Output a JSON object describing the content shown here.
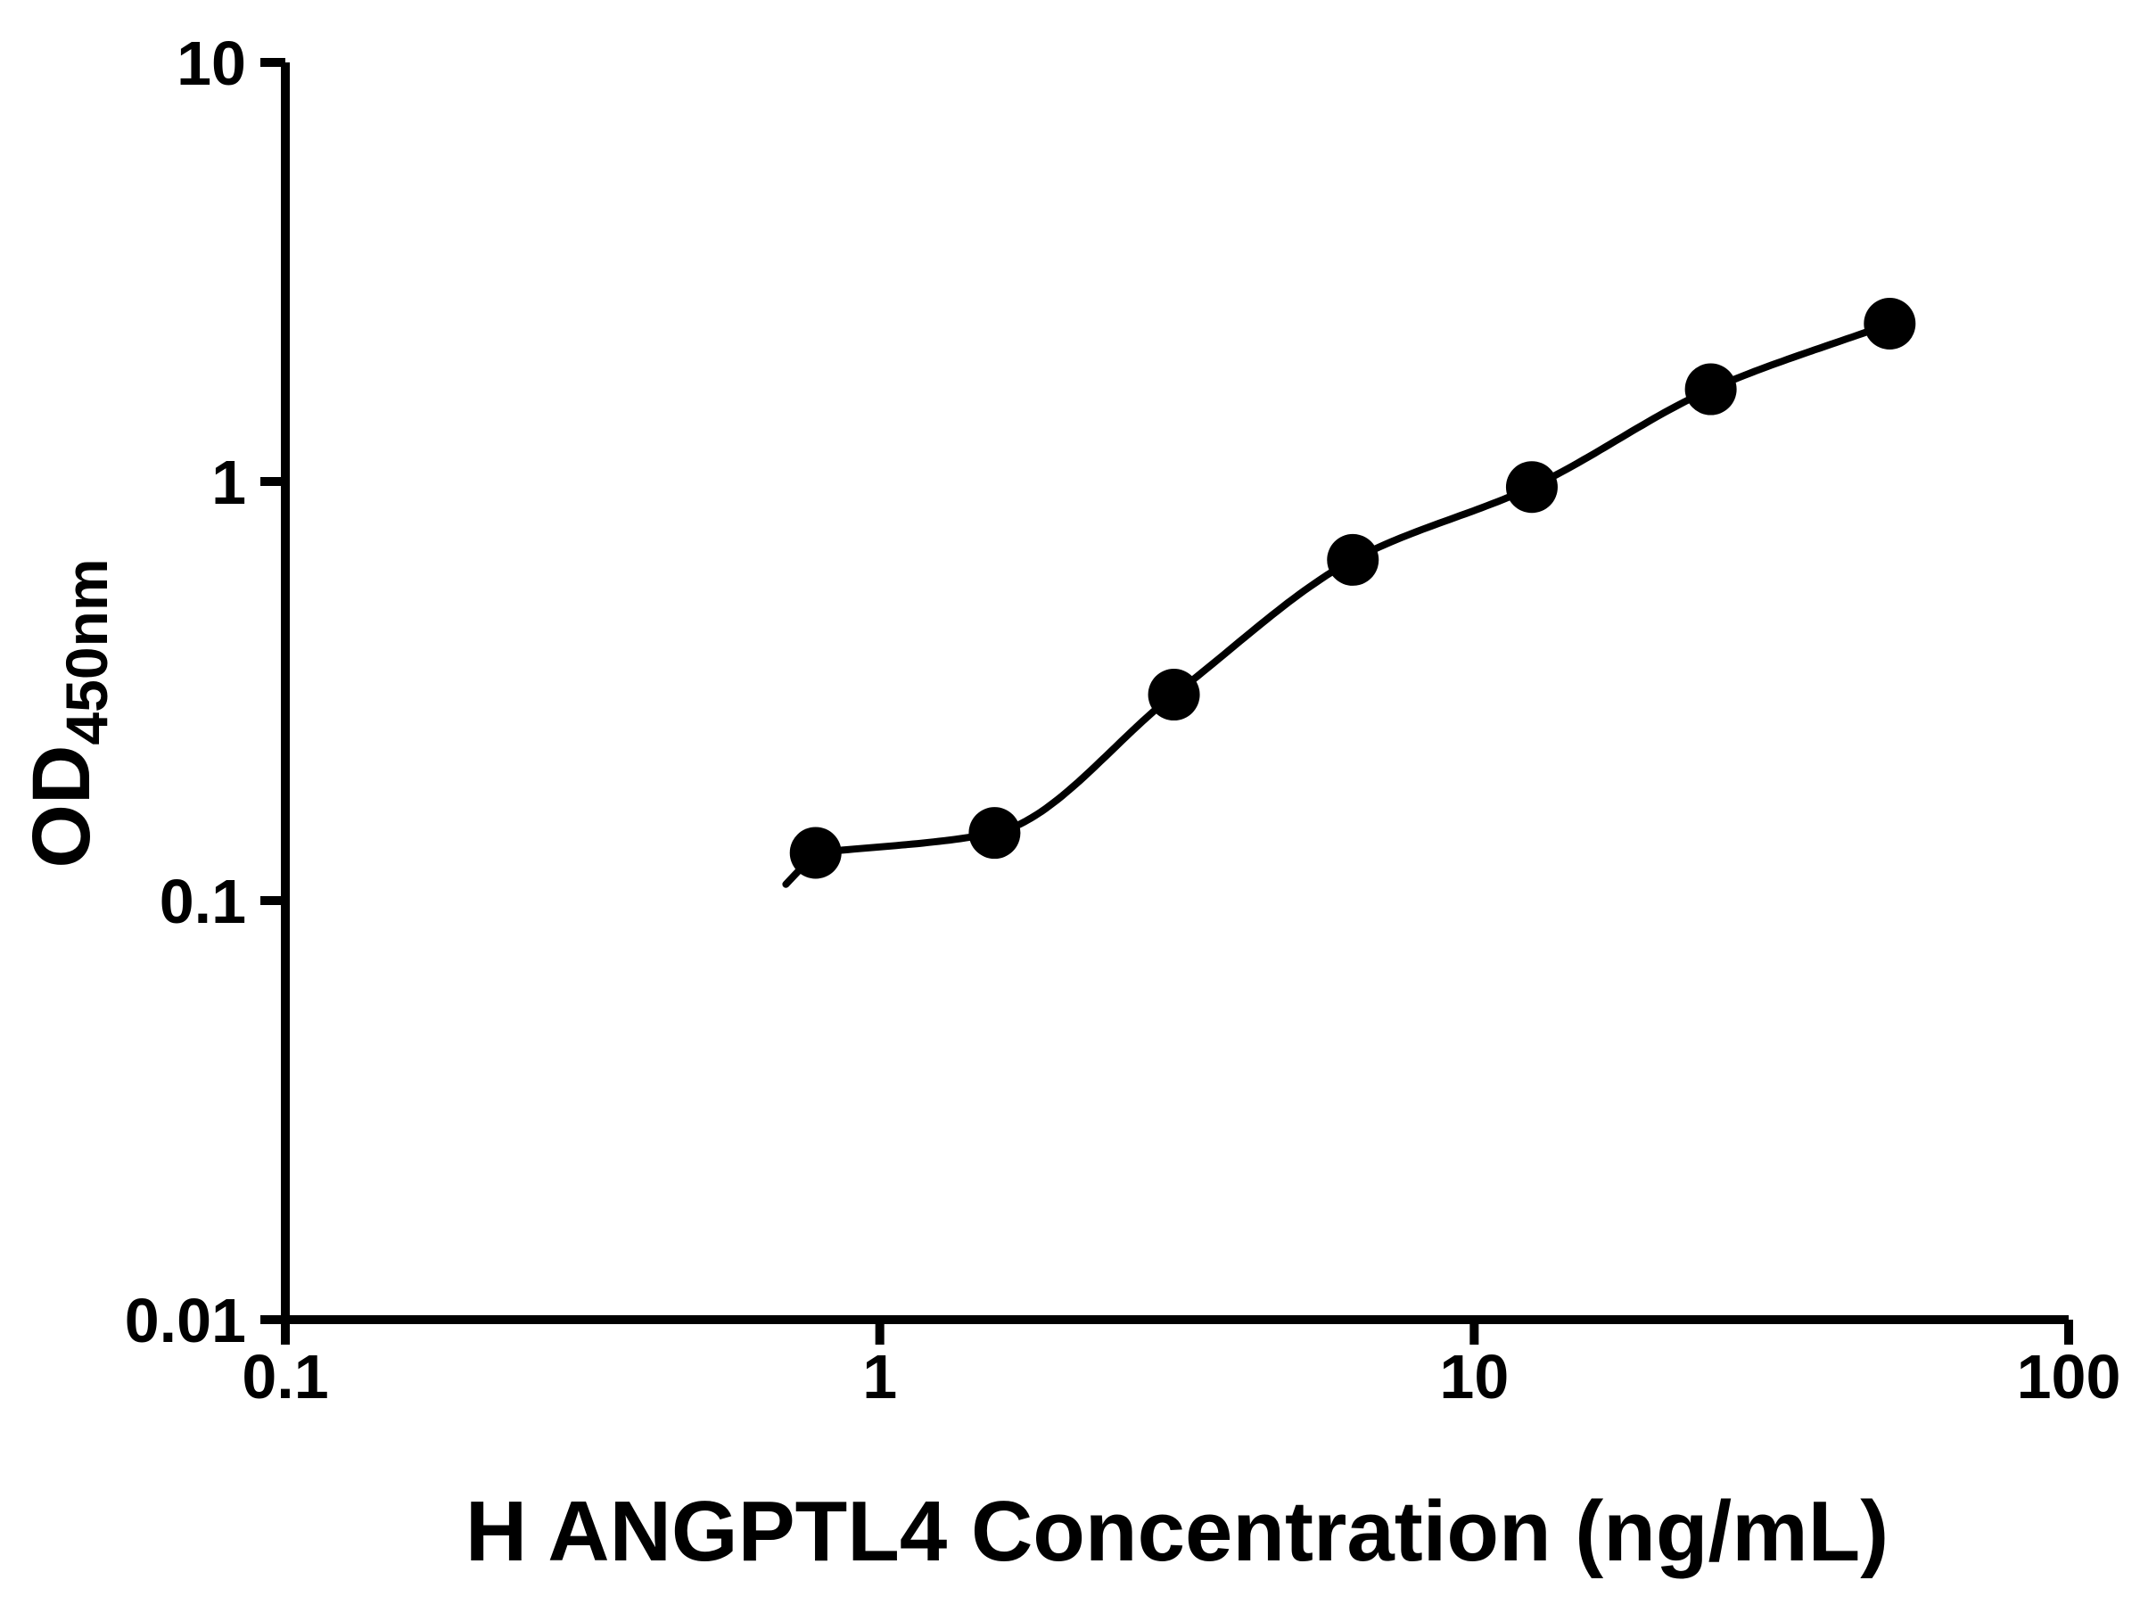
{
  "chart_data": {
    "type": "scatter",
    "title": "",
    "xlabel": "H ANGPTL4 Concentration (ng/mL)",
    "ylabel_main": "OD",
    "ylabel_sub": "450nm",
    "xscale": "log",
    "yscale": "log",
    "xlim": [
      0.1,
      100
    ],
    "ylim": [
      0.01,
      10
    ],
    "x_tick_values": [
      0.1,
      1,
      10,
      100
    ],
    "x_tick_labels": [
      "0.1",
      "1",
      "10",
      "100"
    ],
    "y_tick_values": [
      0.01,
      0.1,
      1,
      10
    ],
    "y_tick_labels": [
      "0.01",
      "0.1",
      "1",
      "10"
    ],
    "x": [
      0.78,
      1.56,
      3.125,
      6.25,
      12.5,
      25,
      50
    ],
    "y": [
      0.13,
      0.145,
      0.31,
      0.65,
      0.97,
      1.66,
      2.38
    ],
    "has_fit_curve": true,
    "grid": false,
    "legend": "none",
    "colors": {
      "axis": "#000000",
      "points": "#000000",
      "curve": "#000000",
      "text": "#000000",
      "background": "#ffffff"
    }
  }
}
